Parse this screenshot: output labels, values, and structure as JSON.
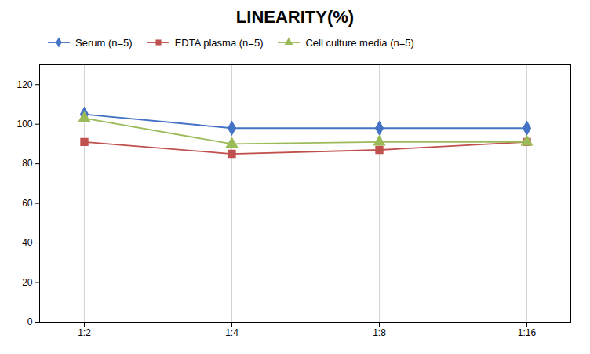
{
  "chart_data": {
    "type": "line",
    "title": "LINEARITY(%)",
    "categories": [
      "1:2",
      "1:4",
      "1:8",
      "1:16"
    ],
    "series": [
      {
        "name": "Serum (n=5)",
        "color": "#4472C4",
        "marker": "diamond",
        "values": [
          105,
          98,
          98,
          98
        ]
      },
      {
        "name": "EDTA plasma (n=5)",
        "color": "#C0504D",
        "marker": "square",
        "values": [
          91,
          85,
          87,
          91
        ]
      },
      {
        "name": "Cell culture media (n=5)",
        "color": "#9BBB59",
        "marker": "triangle",
        "values": [
          103,
          90,
          91,
          91
        ]
      }
    ],
    "ylim": [
      0,
      130
    ],
    "yticks": [
      0,
      20,
      40,
      60,
      80,
      100,
      120
    ],
    "grid": "x",
    "legend": "top"
  }
}
